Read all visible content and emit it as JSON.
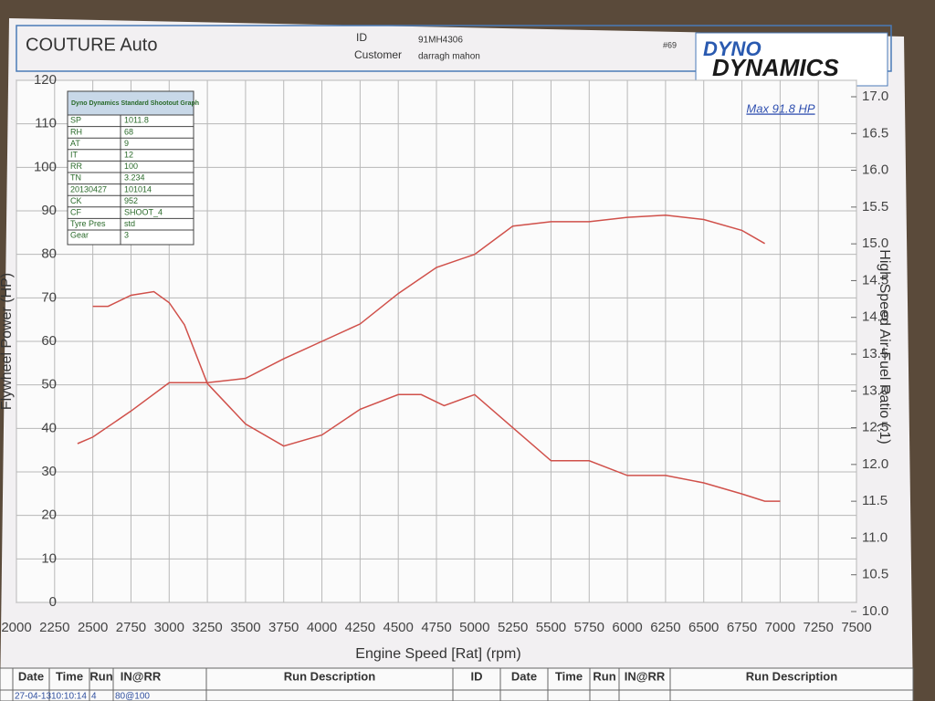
{
  "header": {
    "company": "COUTURE Auto",
    "id_label": "ID",
    "id_value": "91MH4306",
    "customer_label": "Customer",
    "customer_value": "darragh mahon",
    "sheet_no": "#69",
    "logo_top": "DYNO",
    "logo_bottom": "DYNAMICS"
  },
  "info_table": {
    "title": "Dyno Dynamics Standard Shootout Graph",
    "rows": [
      [
        "SP",
        "1011.8"
      ],
      [
        "RH",
        "68"
      ],
      [
        "AT",
        "9"
      ],
      [
        "IT",
        "12"
      ],
      [
        "RR",
        "100"
      ],
      [
        "TN",
        "3.234"
      ],
      [
        "20130427",
        "101014"
      ],
      [
        "CK",
        "952"
      ],
      [
        "CF",
        "SHOOT_4"
      ],
      [
        "Tyre Pres",
        "std"
      ],
      [
        "Gear",
        "3"
      ]
    ]
  },
  "run_table": {
    "headers": [
      "Date",
      "Time",
      "Run",
      "IN@RR",
      "Run Description",
      "ID",
      "Date",
      "Time",
      "Run",
      "IN@RR",
      "Run Description"
    ],
    "row": [
      "27-04-13",
      "10:10:14",
      "4",
      "80@100"
    ]
  },
  "chart_data": {
    "type": "line",
    "annotation": "Max 91.8 HP",
    "x_label": "Engine Speed [Rat] (rpm)",
    "y_label": "Flywheel Power (HP)",
    "y2_label": "High Speed Air-Fuel Ratio (:1)",
    "xlim": [
      2000,
      7500
    ],
    "xticks": [
      2000,
      2250,
      2500,
      2750,
      3000,
      3250,
      3500,
      3750,
      4000,
      4250,
      4500,
      4750,
      5000,
      5250,
      5500,
      5750,
      6000,
      6250,
      6500,
      6750,
      7000,
      7250,
      7500
    ],
    "ylim": [
      0,
      120
    ],
    "yticks": [
      0,
      10,
      20,
      30,
      40,
      50,
      60,
      70,
      80,
      90,
      100,
      110,
      120
    ],
    "y2lim": [
      10,
      17
    ],
    "y2ticks": [
      {
        "value": 10,
        "label": "10.0"
      },
      {
        "value": 10.5,
        "label": "10.5"
      },
      {
        "value": 11,
        "label": "11.0"
      },
      {
        "value": 11.5,
        "label": "11.5"
      },
      {
        "value": 12,
        "label": "12.0"
      },
      {
        "value": 12.5,
        "label": "12.5"
      },
      {
        "value": 13,
        "label": "13.0"
      },
      {
        "value": 13.5,
        "label": "13.5"
      },
      {
        "value": 14,
        "label": "14.0"
      },
      {
        "value": 14.5,
        "label": "14.5"
      },
      {
        "value": 15,
        "label": "15.0"
      },
      {
        "value": 15.5,
        "label": "15.5"
      },
      {
        "value": 16,
        "label": "16.0"
      },
      {
        "value": 16.5,
        "label": "16.5"
      },
      {
        "value": 17,
        "label": "17.0"
      }
    ],
    "grid": true,
    "series": [
      {
        "color": "#d0504a",
        "x": [
          2400,
          2500,
          2750,
          3000,
          3250,
          3500,
          3750,
          4000,
          4250,
          4500,
          4750,
          5000,
          5250,
          5500,
          5750,
          6000,
          6250,
          6500,
          6750,
          6900
        ],
        "values": [
          36.5,
          38,
          44,
          50.5,
          50.5,
          51.5,
          56,
          60,
          64,
          71,
          77,
          80,
          86.5,
          87.5,
          87.5,
          88.5,
          89,
          88,
          85.5,
          82.5
        ]
      },
      {
        "color": "#d0504a",
        "axis": "y2",
        "x": [
          2500,
          2600,
          2750,
          2900,
          3000,
          3100,
          3250,
          3500,
          3750,
          4000,
          4250,
          4500,
          4650,
          4800,
          5000,
          5250,
          5500,
          5750,
          6000,
          6250,
          6500,
          6750,
          6900,
          7000
        ],
        "values": [
          14.15,
          14.15,
          14.3,
          14.35,
          14.2,
          13.9,
          13.1,
          12.55,
          12.25,
          12.4,
          12.75,
          12.95,
          12.95,
          12.8,
          12.95,
          12.5,
          12.05,
          12.05,
          11.85,
          11.85,
          11.75,
          11.6,
          11.5,
          11.5
        ]
      }
    ]
  }
}
